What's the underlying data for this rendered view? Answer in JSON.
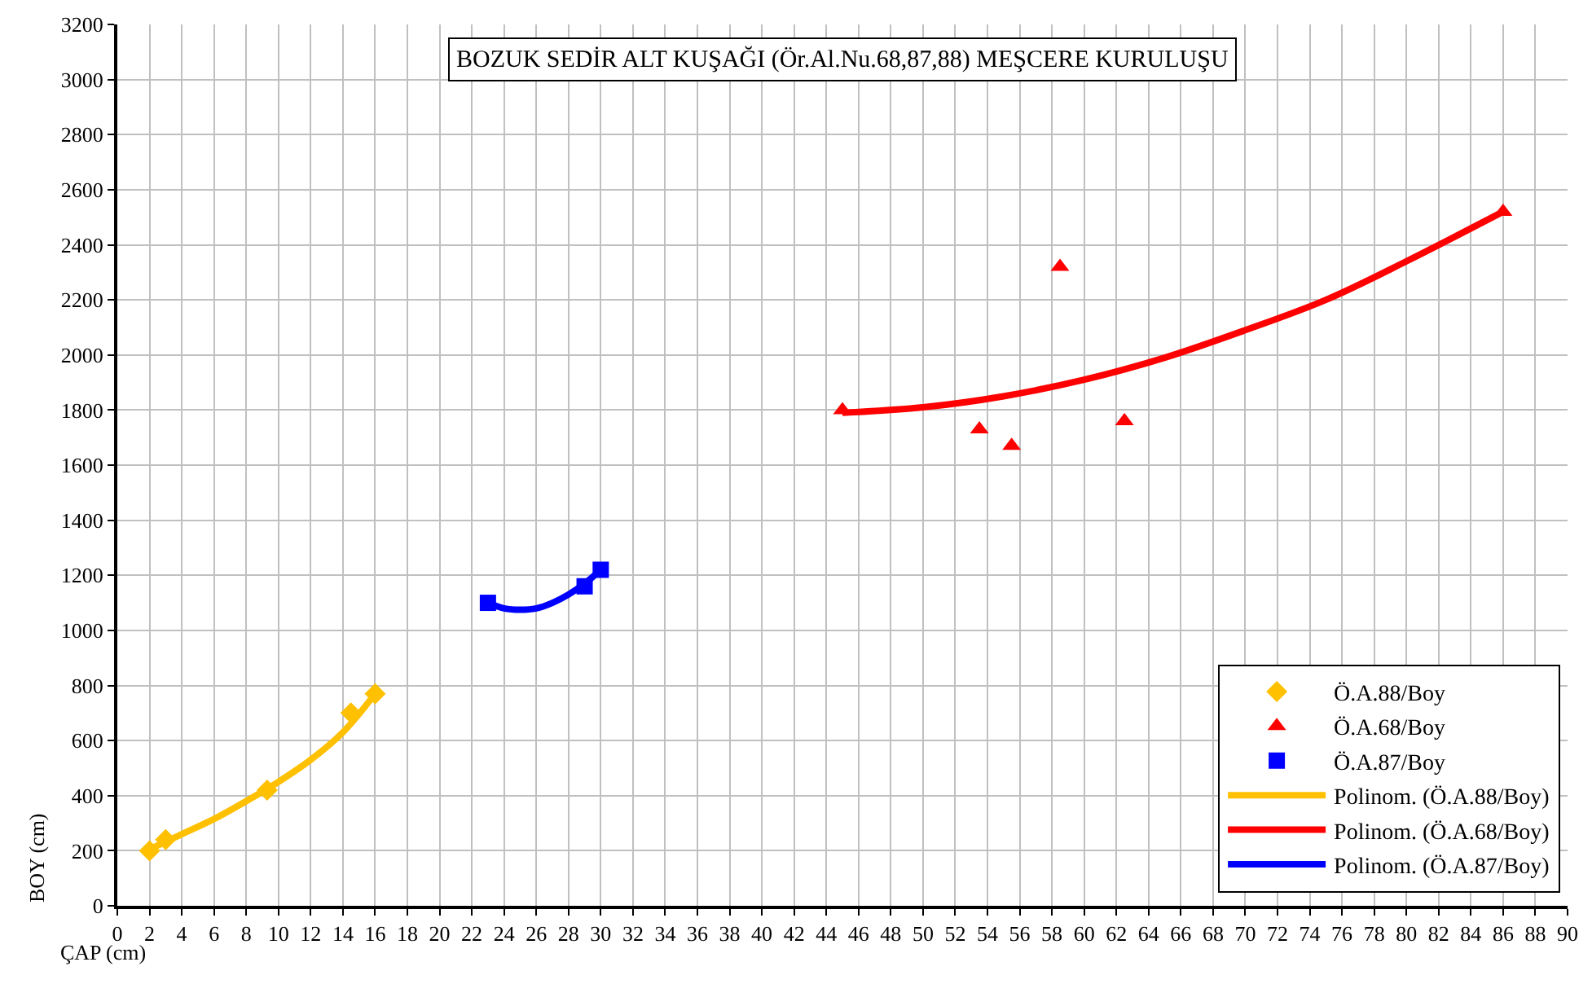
{
  "chart_data": {
    "type": "scatter",
    "title": "BOZUK SEDİR ALT KUŞAĞI (Ör.Al.Nu.68,87,88) MEŞCERE KURULUŞU",
    "xlabel": "ÇAP (cm)",
    "ylabel": "BOY (cm)",
    "xlim": [
      0,
      90
    ],
    "xticks": [
      0,
      2,
      4,
      6,
      8,
      10,
      12,
      14,
      16,
      18,
      20,
      22,
      24,
      26,
      28,
      30,
      32,
      34,
      36,
      38,
      40,
      42,
      44,
      46,
      48,
      50,
      52,
      54,
      56,
      58,
      60,
      62,
      64,
      66,
      68,
      70,
      72,
      74,
      76,
      78,
      80,
      82,
      84,
      86,
      88,
      90
    ],
    "ylim": [
      0,
      3200
    ],
    "yticks": [
      0,
      200,
      400,
      600,
      800,
      1000,
      1200,
      1400,
      1600,
      1800,
      2000,
      2200,
      2400,
      2600,
      2800,
      3000,
      3200
    ],
    "grid": true,
    "legend": "bottom right",
    "series": [
      {
        "name": "Ö.A.88/Boy",
        "marker": "diamond",
        "color": "#ffc000",
        "x": [
          2,
          3,
          9.3,
          14.5,
          16
        ],
        "values": [
          200,
          240,
          420,
          700,
          770
        ]
      },
      {
        "name": "Ö.A.68/Boy",
        "marker": "triangle",
        "color": "#ff0000",
        "x": [
          45,
          53.5,
          55.5,
          58.5,
          62.5,
          86
        ],
        "values": [
          1800,
          1730,
          1670,
          2320,
          1760,
          2520
        ]
      },
      {
        "name": "Ö.A.87/Boy",
        "marker": "square",
        "color": "#0000ff",
        "x": [
          23,
          29,
          30
        ],
        "values": [
          1100,
          1160,
          1220
        ]
      },
      {
        "name": "Polinom. (Ö.A.88/Boy)",
        "type": "line",
        "marker": "none",
        "color": "#ffc000",
        "x": [
          2,
          4,
          6,
          8,
          10,
          12,
          14,
          16
        ],
        "values": [
          205,
          260,
          315,
          380,
          450,
          530,
          630,
          770
        ]
      },
      {
        "name": "Polinom. (Ö.A.68/Boy)",
        "type": "line",
        "marker": "none",
        "color": "#ff0000",
        "x": [
          45,
          50,
          55,
          60,
          65,
          70,
          75,
          80,
          86
        ],
        "values": [
          1790,
          1810,
          1850,
          1910,
          1990,
          2090,
          2200,
          2340,
          2520
        ]
      },
      {
        "name": "Polinom. (Ö.A.87/Boy)",
        "type": "line",
        "marker": "none",
        "color": "#0000ff",
        "x": [
          23,
          24,
          25,
          26,
          27,
          28,
          29,
          30
        ],
        "values": [
          1100,
          1080,
          1075,
          1080,
          1100,
          1130,
          1170,
          1220
        ]
      }
    ]
  }
}
